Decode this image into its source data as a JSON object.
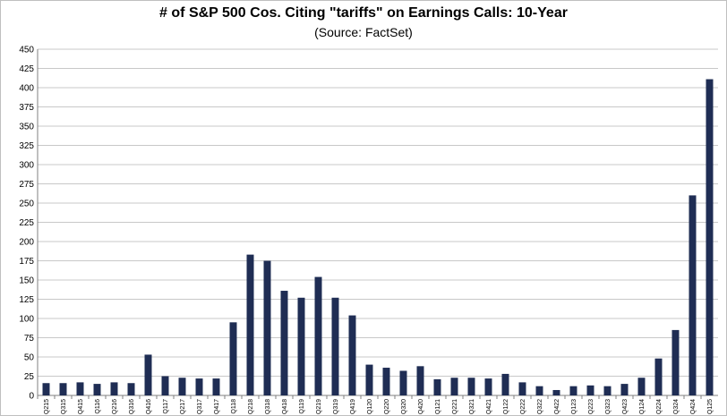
{
  "chart_data": {
    "type": "bar",
    "title": "# of S&P 500 Cos. Citing \"tariffs\" on Earnings Calls: 10-Year",
    "subtitle": "(Source: FactSet)",
    "xlabel": "",
    "ylabel": "",
    "ylim": [
      0,
      450
    ],
    "yticks": [
      0,
      25,
      50,
      75,
      100,
      125,
      150,
      175,
      200,
      225,
      250,
      275,
      300,
      325,
      350,
      375,
      400,
      425,
      450
    ],
    "grid": true,
    "legend": "none",
    "bar_color": "#1f2d54",
    "categories": [
      "Q215",
      "Q315",
      "Q415",
      "Q116",
      "Q216",
      "Q316",
      "Q416",
      "Q117",
      "Q217",
      "Q317",
      "Q417",
      "Q118",
      "Q218",
      "Q318",
      "Q418",
      "Q119",
      "Q219",
      "Q319",
      "Q419",
      "Q120",
      "Q220",
      "Q320",
      "Q420",
      "Q121",
      "Q221",
      "Q321",
      "Q421",
      "Q122",
      "Q222",
      "Q322",
      "Q422",
      "Q123",
      "Q223",
      "Q323",
      "Q423",
      "Q124",
      "Q224",
      "Q324",
      "Q424",
      "Q125"
    ],
    "values": [
      16,
      16,
      17,
      15,
      17,
      16,
      53,
      25,
      23,
      22,
      22,
      95,
      183,
      175,
      136,
      127,
      154,
      127,
      104,
      40,
      36,
      32,
      38,
      21,
      23,
      23,
      22,
      28,
      17,
      12,
      7,
      12,
      13,
      12,
      15,
      23,
      48,
      85,
      260,
      411
    ]
  }
}
